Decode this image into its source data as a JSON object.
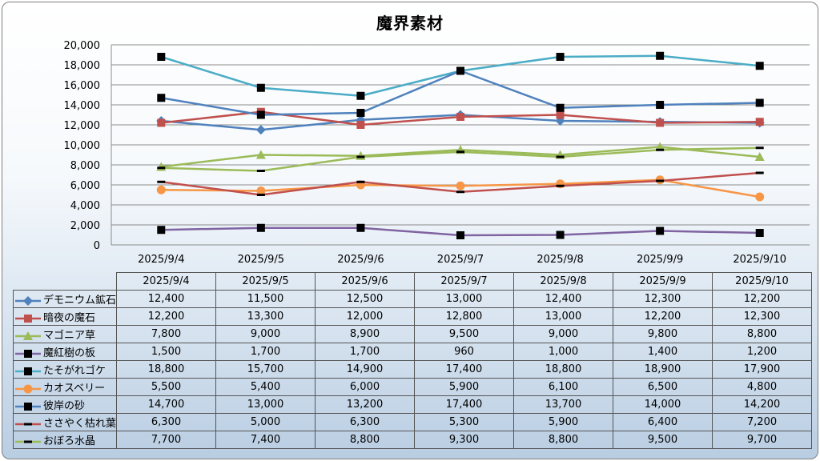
{
  "chart_data": {
    "type": "line",
    "title": "魔界素材",
    "categories": [
      "2025/9/4",
      "2025/9/5",
      "2025/9/6",
      "2025/9/7",
      "2025/9/8",
      "2025/9/9",
      "2025/9/10"
    ],
    "ylim": [
      0,
      20000
    ],
    "yticks": [
      "0",
      "2,000",
      "4,000",
      "6,000",
      "8,000",
      "10,000",
      "12,000",
      "14,000",
      "16,000",
      "18,000",
      "20,000"
    ],
    "grid": true,
    "legend": "data-table",
    "series": [
      {
        "name": "デモニウム鉱石",
        "color": "#4f81bd",
        "marker": "diamond",
        "values": [
          12400,
          11500,
          12500,
          13000,
          12400,
          12300,
          12200
        ],
        "display": [
          "12,400",
          "11,500",
          "12,500",
          "13,000",
          "12,400",
          "12,300",
          "12,200"
        ]
      },
      {
        "name": "暗夜の魔石",
        "color": "#c0504d",
        "marker": "square",
        "values": [
          12200,
          13300,
          12000,
          12800,
          13000,
          12200,
          12300
        ],
        "display": [
          "12,200",
          "13,300",
          "12,000",
          "12,800",
          "13,000",
          "12,200",
          "12,300"
        ]
      },
      {
        "name": "マゴニア草",
        "color": "#9bbb59",
        "marker": "triangle",
        "values": [
          7800,
          9000,
          8900,
          9500,
          9000,
          9800,
          8800
        ],
        "display": [
          "7,800",
          "9,000",
          "8,900",
          "9,500",
          "9,000",
          "9,800",
          "8,800"
        ]
      },
      {
        "name": "魔紅樹の板",
        "color": "#8064a2",
        "marker": "blacksquare",
        "values": [
          1500,
          1700,
          1700,
          960,
          1000,
          1400,
          1200
        ],
        "display": [
          "1,500",
          "1,700",
          "1,700",
          "960",
          "1,000",
          "1,400",
          "1,200"
        ]
      },
      {
        "name": "たそがれゴケ",
        "color": "#4bacc6",
        "marker": "blacksquare",
        "values": [
          18800,
          15700,
          14900,
          17400,
          18800,
          18900,
          17900
        ],
        "display": [
          "18,800",
          "15,700",
          "14,900",
          "17,400",
          "18,800",
          "18,900",
          "17,900"
        ]
      },
      {
        "name": "カオスベリー",
        "color": "#f79646",
        "marker": "circle",
        "values": [
          5500,
          5400,
          6000,
          5900,
          6100,
          6500,
          4800
        ],
        "display": [
          "5,500",
          "5,400",
          "6,000",
          "5,900",
          "6,100",
          "6,500",
          "4,800"
        ]
      },
      {
        "name": "彼岸の砂",
        "color": "#4f81bd",
        "marker": "blacksquare",
        "values": [
          14700,
          13000,
          13200,
          17400,
          13700,
          14000,
          14200
        ],
        "display": [
          "14,700",
          "13,000",
          "13,200",
          "17,400",
          "13,700",
          "14,000",
          "14,200"
        ]
      },
      {
        "name": "ささやく枯れ葉",
        "color": "#c0504d",
        "marker": "dash",
        "values": [
          6300,
          5000,
          6300,
          5300,
          5900,
          6400,
          7200
        ],
        "display": [
          "6,300",
          "5,000",
          "6,300",
          "5,300",
          "5,900",
          "6,400",
          "7,200"
        ]
      },
      {
        "name": "おぼろ水晶",
        "color": "#9bbb59",
        "marker": "dash",
        "values": [
          7700,
          7400,
          8800,
          9300,
          8800,
          9500,
          9700
        ],
        "display": [
          "7,700",
          "7,400",
          "8,800",
          "9,300",
          "8,800",
          "9,500",
          "9,700"
        ]
      }
    ]
  }
}
